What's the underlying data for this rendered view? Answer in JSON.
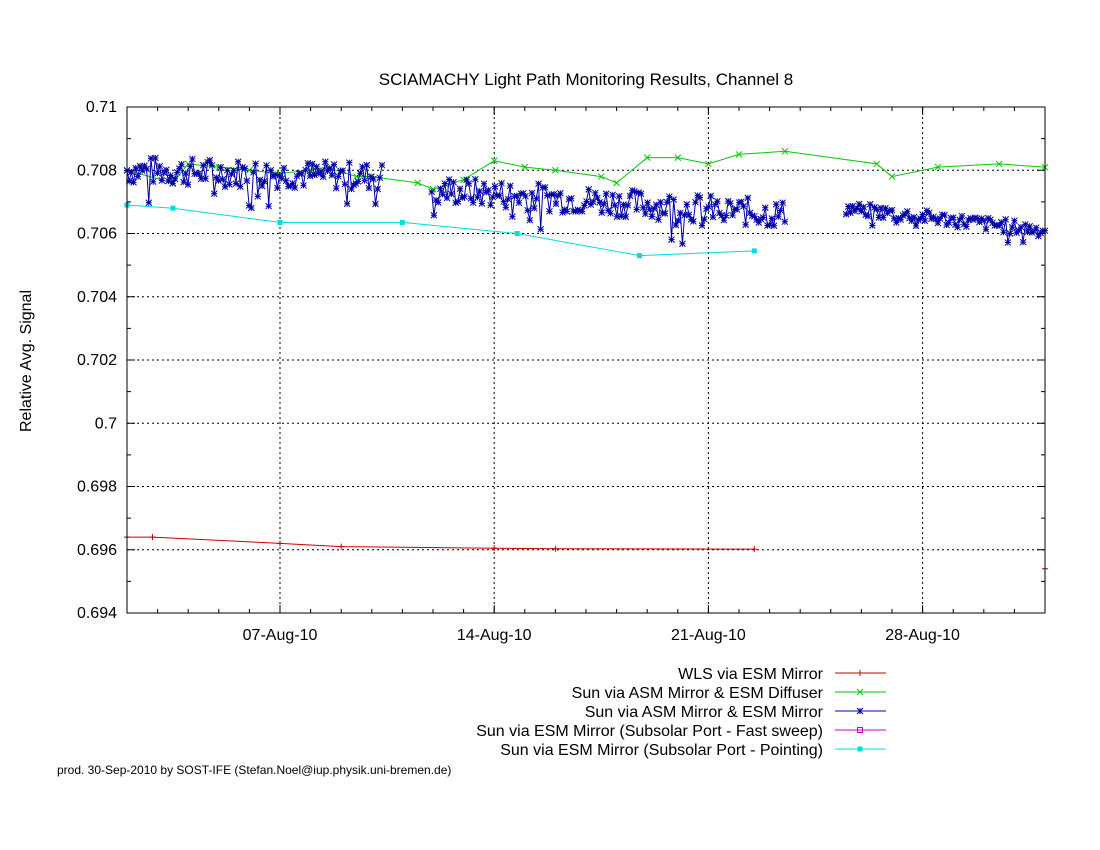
{
  "chart_data": {
    "type": "line",
    "title": "SCIAMACHY Light Path Monitoring Results, Channel 8",
    "xlabel": "",
    "ylabel": "Relative Avg. Signal",
    "xlim": [
      "2010-08-02",
      "2010-09-01"
    ],
    "ylim": [
      0.694,
      0.71
    ],
    "yticks": [
      "0.694",
      "0.696",
      "0.698",
      "0.7",
      "0.702",
      "0.704",
      "0.706",
      "0.708",
      "0.71"
    ],
    "xticks": [
      {
        "date": "2010-08-07",
        "label": "07-Aug-10"
      },
      {
        "date": "2010-08-14",
        "label": "14-Aug-10"
      },
      {
        "date": "2010-08-21",
        "label": "21-Aug-10"
      },
      {
        "date": "2010-08-28",
        "label": "28-Aug-10"
      }
    ],
    "grid": true,
    "legend_position": "bottom-right",
    "series": [
      {
        "name": "WLS via ESM Mirror",
        "color": "#cc0000",
        "marker": "plus",
        "points": [
          [
            "2010-08-02",
            0.6964
          ],
          [
            "2010-08-02 20:00",
            0.6964
          ],
          [
            "2010-08-07",
            0.6962
          ],
          [
            "2010-08-09",
            0.6961
          ],
          [
            "2010-08-14",
            0.69605
          ],
          [
            "2010-08-16",
            0.69603
          ],
          [
            "2010-08-22 12:00",
            0.69602
          ]
        ],
        "extra_points": [
          [
            "2010-09-01",
            0.6954
          ]
        ]
      },
      {
        "name": "Sun via ASM Mirror & ESM Diffuser",
        "color": "#00cc00",
        "marker": "cross",
        "points": [
          [
            "2010-08-02",
            0.708
          ],
          [
            "2010-08-03 12:00",
            0.7076
          ],
          [
            "2010-08-04",
            0.7082
          ],
          [
            "2010-08-05",
            0.7081
          ],
          [
            "2010-08-06",
            0.708
          ],
          [
            "2010-08-07",
            0.7079
          ],
          [
            "2010-08-08",
            0.708
          ],
          [
            "2010-08-08 12:00",
            0.7081
          ],
          [
            "2010-08-09 12:00",
            0.7078
          ],
          [
            "2010-08-10",
            0.7078
          ],
          [
            "2010-08-11 12:00",
            0.7076
          ],
          [
            "2010-08-12",
            0.7074
          ],
          [
            "2010-08-13",
            0.7077
          ],
          [
            "2010-08-14",
            0.7083
          ],
          [
            "2010-08-15",
            0.7081
          ],
          [
            "2010-08-16",
            0.708
          ],
          [
            "2010-08-17 12:00",
            0.7078
          ],
          [
            "2010-08-18",
            0.7076
          ],
          [
            "2010-08-19",
            0.7084
          ],
          [
            "2010-08-20",
            0.7084
          ],
          [
            "2010-08-21",
            0.7082
          ],
          [
            "2010-08-22",
            0.7085
          ],
          [
            "2010-08-23 12:00",
            0.7086
          ],
          [
            "2010-08-26 12:00",
            0.7082
          ],
          [
            "2010-08-27",
            0.7078
          ],
          [
            "2010-08-28 12:00",
            0.7081
          ],
          [
            "2010-08-30 12:00",
            0.7082
          ],
          [
            "2010-09-01",
            0.7081
          ]
        ]
      },
      {
        "name": "Sun via ASM Mirror & ESM Mirror",
        "color": "#0000aa",
        "marker": "star",
        "segments": [
          {
            "start": "2010-08-02",
            "end": "2010-08-10 08:00",
            "base_start": 0.708,
            "base_end": 0.7078,
            "amplitude": 0.00045
          },
          {
            "start": "2010-08-11 23:00",
            "end": "2010-08-23 12:00",
            "base_start": 0.7074,
            "base_end": 0.7066,
            "amplitude": 0.00045
          },
          {
            "start": "2010-08-25 12:00",
            "end": "2010-09-01",
            "base_start": 0.7068,
            "base_end": 0.7061,
            "amplitude": 0.00022
          }
        ]
      },
      {
        "name": "Sun via ESM Mirror (Subsolar Port - Fast sweep)",
        "color": "#cc00cc",
        "marker": "square-open",
        "points": []
      },
      {
        "name": "Sun via ESM Mirror (Subsolar Port - Pointing)",
        "color": "#00dddd",
        "marker": "square",
        "points": [
          [
            "2010-08-02",
            0.7069
          ],
          [
            "2010-08-03 12:00",
            0.7068
          ],
          [
            "2010-08-07",
            0.70635
          ],
          [
            "2010-08-11",
            0.70635
          ],
          [
            "2010-08-14 18:00",
            0.706
          ],
          [
            "2010-08-18 18:00",
            0.7053
          ],
          [
            "2010-08-22 12:00",
            0.70545
          ]
        ]
      }
    ]
  },
  "footer": "prod. 30-Sep-2010 by SOST-IFE (Stefan.Noel@iup.physik.uni-bremen.de)"
}
